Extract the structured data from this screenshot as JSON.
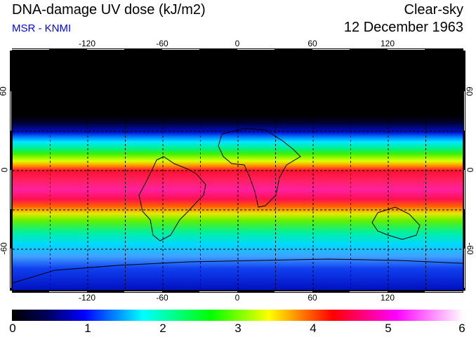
{
  "header": {
    "title": "DNA-damage UV dose (kJ/m2)",
    "source": "MSR - KNMI",
    "condition": "Clear-sky",
    "date": "12 December 1963"
  },
  "map": {
    "lon_labels": [
      "-120",
      "-60",
      "0",
      "60",
      "120"
    ],
    "lat_labels": [
      "60",
      "0",
      "-60"
    ],
    "lon_range": [
      -180,
      180
    ],
    "lat_range": [
      -90,
      90
    ]
  },
  "colorbar": {
    "ticks": [
      "0",
      "1",
      "2",
      "3",
      "4",
      "5",
      "6"
    ],
    "min": 0,
    "max": 6,
    "colors": [
      "#000000",
      "#0000ff",
      "#00ffff",
      "#00ff00",
      "#ffff00",
      "#ff0000",
      "#ff00ff",
      "#ffffff"
    ]
  }
}
